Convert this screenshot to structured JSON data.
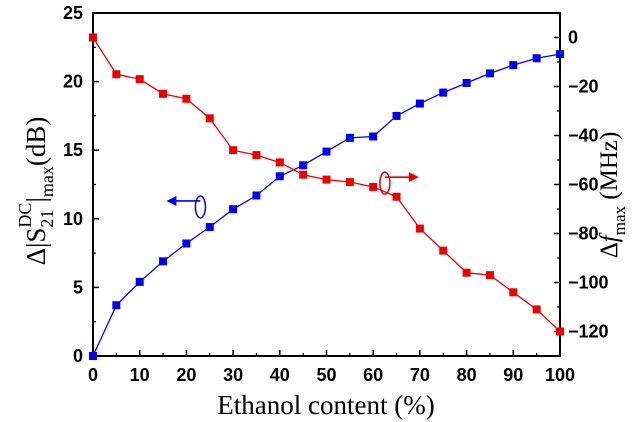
{
  "chart_data": {
    "type": "line",
    "xlabel": "Ethanol content (%)",
    "x": [
      0,
      5,
      10,
      15,
      20,
      25,
      30,
      35,
      40,
      45,
      50,
      55,
      60,
      65,
      70,
      75,
      80,
      85,
      90,
      95,
      100
    ],
    "xlim": [
      0,
      100
    ],
    "x_ticks": [
      "0",
      "10",
      "20",
      "30",
      "40",
      "50",
      "60",
      "70",
      "80",
      "90",
      "100"
    ],
    "left_axis": {
      "label_parts": {
        "pre": "Δ|S",
        "sub": "21",
        "sup": "DC",
        "mid": "|",
        "sub2": "max",
        "post": "(dB)"
      },
      "ylim": [
        0,
        25
      ],
      "ticks": [
        "0",
        "5",
        "10",
        "15",
        "20",
        "25"
      ]
    },
    "right_axis": {
      "label_parts": {
        "pre": "Δ",
        "italic": "f",
        "sub": "max",
        "post": " (MHz)"
      },
      "ylim": [
        -130,
        10
      ],
      "ticks": [
        "0",
        "-20",
        "-40",
        "-60",
        "-80",
        "-100",
        "-120"
      ]
    },
    "series": [
      {
        "axis": "left",
        "color": "#0000ee",
        "marker": "square",
        "values": [
          0,
          3.7,
          5.4,
          6.9,
          8.2,
          9.4,
          10.7,
          11.7,
          13.1,
          13.9,
          14.9,
          15.9,
          16.0,
          17.5,
          18.4,
          19.2,
          19.9,
          20.6,
          21.2,
          21.7,
          22.0
        ]
      },
      {
        "axis": "right",
        "color": "#ee0000",
        "marker": "square",
        "values": [
          0,
          -15,
          -17,
          -23,
          -25,
          -33,
          -46,
          -48,
          -51,
          -56,
          -58,
          -59,
          -61,
          -65,
          -78,
          -87,
          -96,
          -97,
          -104,
          -111,
          -120
        ]
      }
    ],
    "annotations": [
      {
        "type": "arrow-left",
        "series": "left"
      },
      {
        "type": "arrow-right",
        "series": "right"
      }
    ],
    "grid": false,
    "legend": "none"
  }
}
